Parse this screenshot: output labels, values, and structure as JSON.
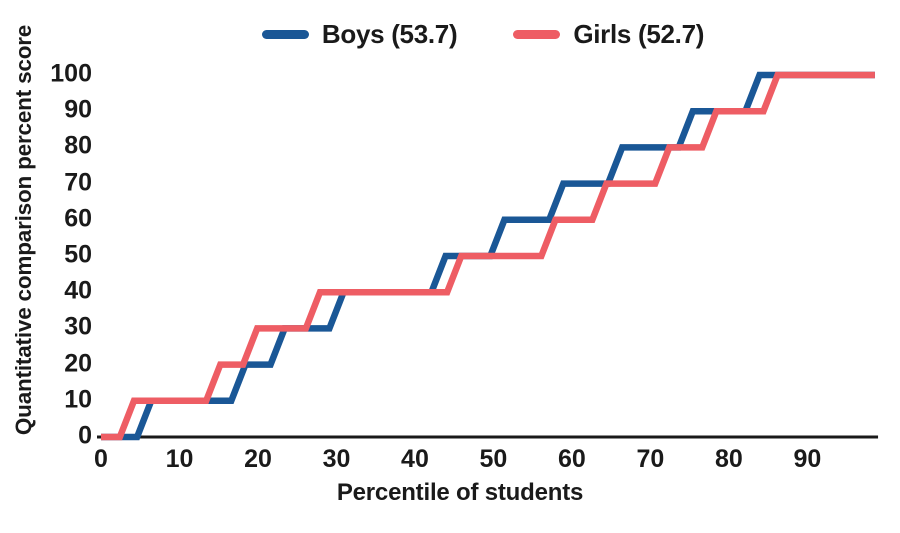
{
  "chart_data": {
    "type": "line",
    "variant": "step_percentile_distribution",
    "title": "",
    "xlabel": "Percentile of students",
    "ylabel": "Quantitative comparison percent score",
    "xlim": [
      0,
      99
    ],
    "ylim": [
      0,
      100
    ],
    "x_ticks": [
      0,
      10,
      20,
      30,
      40,
      50,
      60,
      70,
      80,
      90
    ],
    "y_ticks": [
      0,
      10,
      20,
      30,
      40,
      50,
      60,
      70,
      80,
      90,
      100
    ],
    "grid": "off",
    "legend_position": "top-center",
    "axis_color": "#1a1a1a",
    "text_color": "#1a1a1a",
    "series": [
      {
        "name": "Boys (53.7)",
        "mean_percent_score": 53.7,
        "color": "#1a5796",
        "levels": [
          0,
          10,
          20,
          30,
          40,
          50,
          60,
          70,
          80,
          90,
          100
        ],
        "rise_percentiles": [
          5.5,
          17.5,
          22.5,
          30,
          43,
          50.5,
          58,
          65.5,
          74.5,
          83
        ],
        "x_start": 0,
        "x_end": 98.6
      },
      {
        "name": "Girls (52.7)",
        "mean_percent_score": 52.7,
        "color": "#ee5d64",
        "levels": [
          0,
          10,
          20,
          30,
          40,
          50,
          60,
          70,
          80,
          90,
          100
        ],
        "rise_percentiles": [
          3.3,
          14.3,
          19,
          27,
          45,
          57,
          63.5,
          71.5,
          77.5,
          85.3
        ],
        "x_start": 0,
        "x_end": 98.6
      }
    ]
  }
}
